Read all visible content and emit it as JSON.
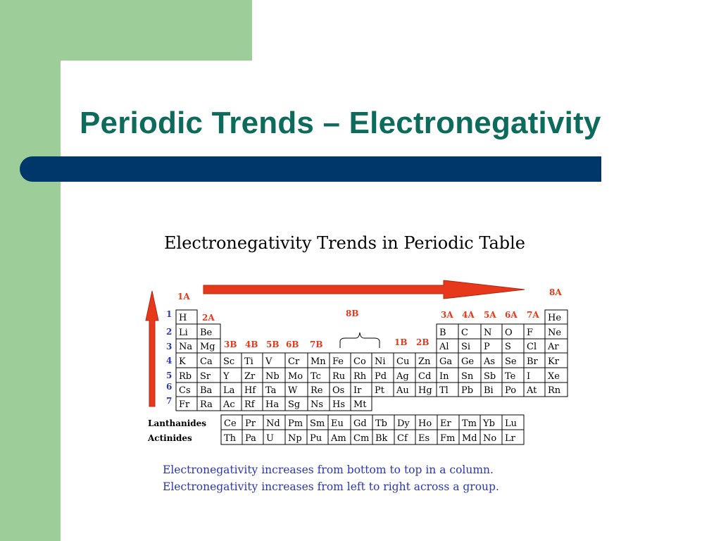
{
  "slide": {
    "title": "Periodic Trends – Electronegativity"
  },
  "diagram": {
    "title": "Electronegativity Trends in Periodic Table",
    "arrow_color": "#e8381b",
    "group_labels": [
      "1A",
      "2A",
      "3B",
      "4B",
      "5B",
      "6B",
      "7B",
      "8B",
      "1B",
      "2B",
      "3A",
      "4A",
      "5A",
      "6A",
      "7A",
      "8A"
    ],
    "period_labels": [
      "1",
      "2",
      "3",
      "4",
      "5",
      "6",
      "7"
    ],
    "main_table": [
      [
        "H",
        "",
        "",
        "",
        "",
        "",
        "",
        "",
        "",
        "",
        "",
        "",
        "",
        "",
        "",
        "",
        "",
        "He"
      ],
      [
        "Li",
        "Be",
        "",
        "",
        "",
        "",
        "",
        "",
        "",
        "",
        "",
        "",
        "B",
        "C",
        "N",
        "O",
        "F",
        "Ne"
      ],
      [
        "Na",
        "Mg",
        "",
        "",
        "",
        "",
        "",
        "",
        "",
        "",
        "",
        "",
        "Al",
        "Si",
        "P",
        "S",
        "Cl",
        "Ar"
      ],
      [
        "K",
        "Ca",
        "Sc",
        "Ti",
        "V",
        "Cr",
        "Mn",
        "Fe",
        "Co",
        "Ni",
        "Cu",
        "Zn",
        "Ga",
        "Ge",
        "As",
        "Se",
        "Br",
        "Kr"
      ],
      [
        "Rb",
        "Sr",
        "Y",
        "Zr",
        "Nb",
        "Mo",
        "Tc",
        "Ru",
        "Rh",
        "Pd",
        "Ag",
        "Cd",
        "In",
        "Sn",
        "Sb",
        "Te",
        "I",
        "Xe"
      ],
      [
        "Cs",
        "Ba",
        "La",
        "Hf",
        "Ta",
        "W",
        "Re",
        "Os",
        "Ir",
        "Pt",
        "Au",
        "Hg",
        "Tl",
        "Pb",
        "Bi",
        "Po",
        "At",
        "Rn"
      ],
      [
        "Fr",
        "Ra",
        "Ac",
        "Rf",
        "Ha",
        "Sg",
        "Ns",
        "Hs",
        "Mt",
        "",
        "",
        "",
        "",
        "",
        "",
        "",
        "",
        ""
      ]
    ],
    "lanthanides_label": "Lanthanides",
    "actinides_label": "Actinides",
    "lanthanides": [
      "Ce",
      "Pr",
      "Nd",
      "Pm",
      "Sm",
      "Eu",
      "Gd",
      "Tb",
      "Dy",
      "Ho",
      "Er",
      "Tm",
      "Yb",
      "Lu"
    ],
    "actinides": [
      "Th",
      "Pa",
      "U",
      "Np",
      "Pu",
      "Am",
      "Cm",
      "Bk",
      "Cf",
      "Es",
      "Fm",
      "Md",
      "No",
      "Lr"
    ],
    "notes": [
      "Electronegativity increases from bottom to top in a column.",
      "Electronegativity increases from left to right across a group."
    ]
  }
}
